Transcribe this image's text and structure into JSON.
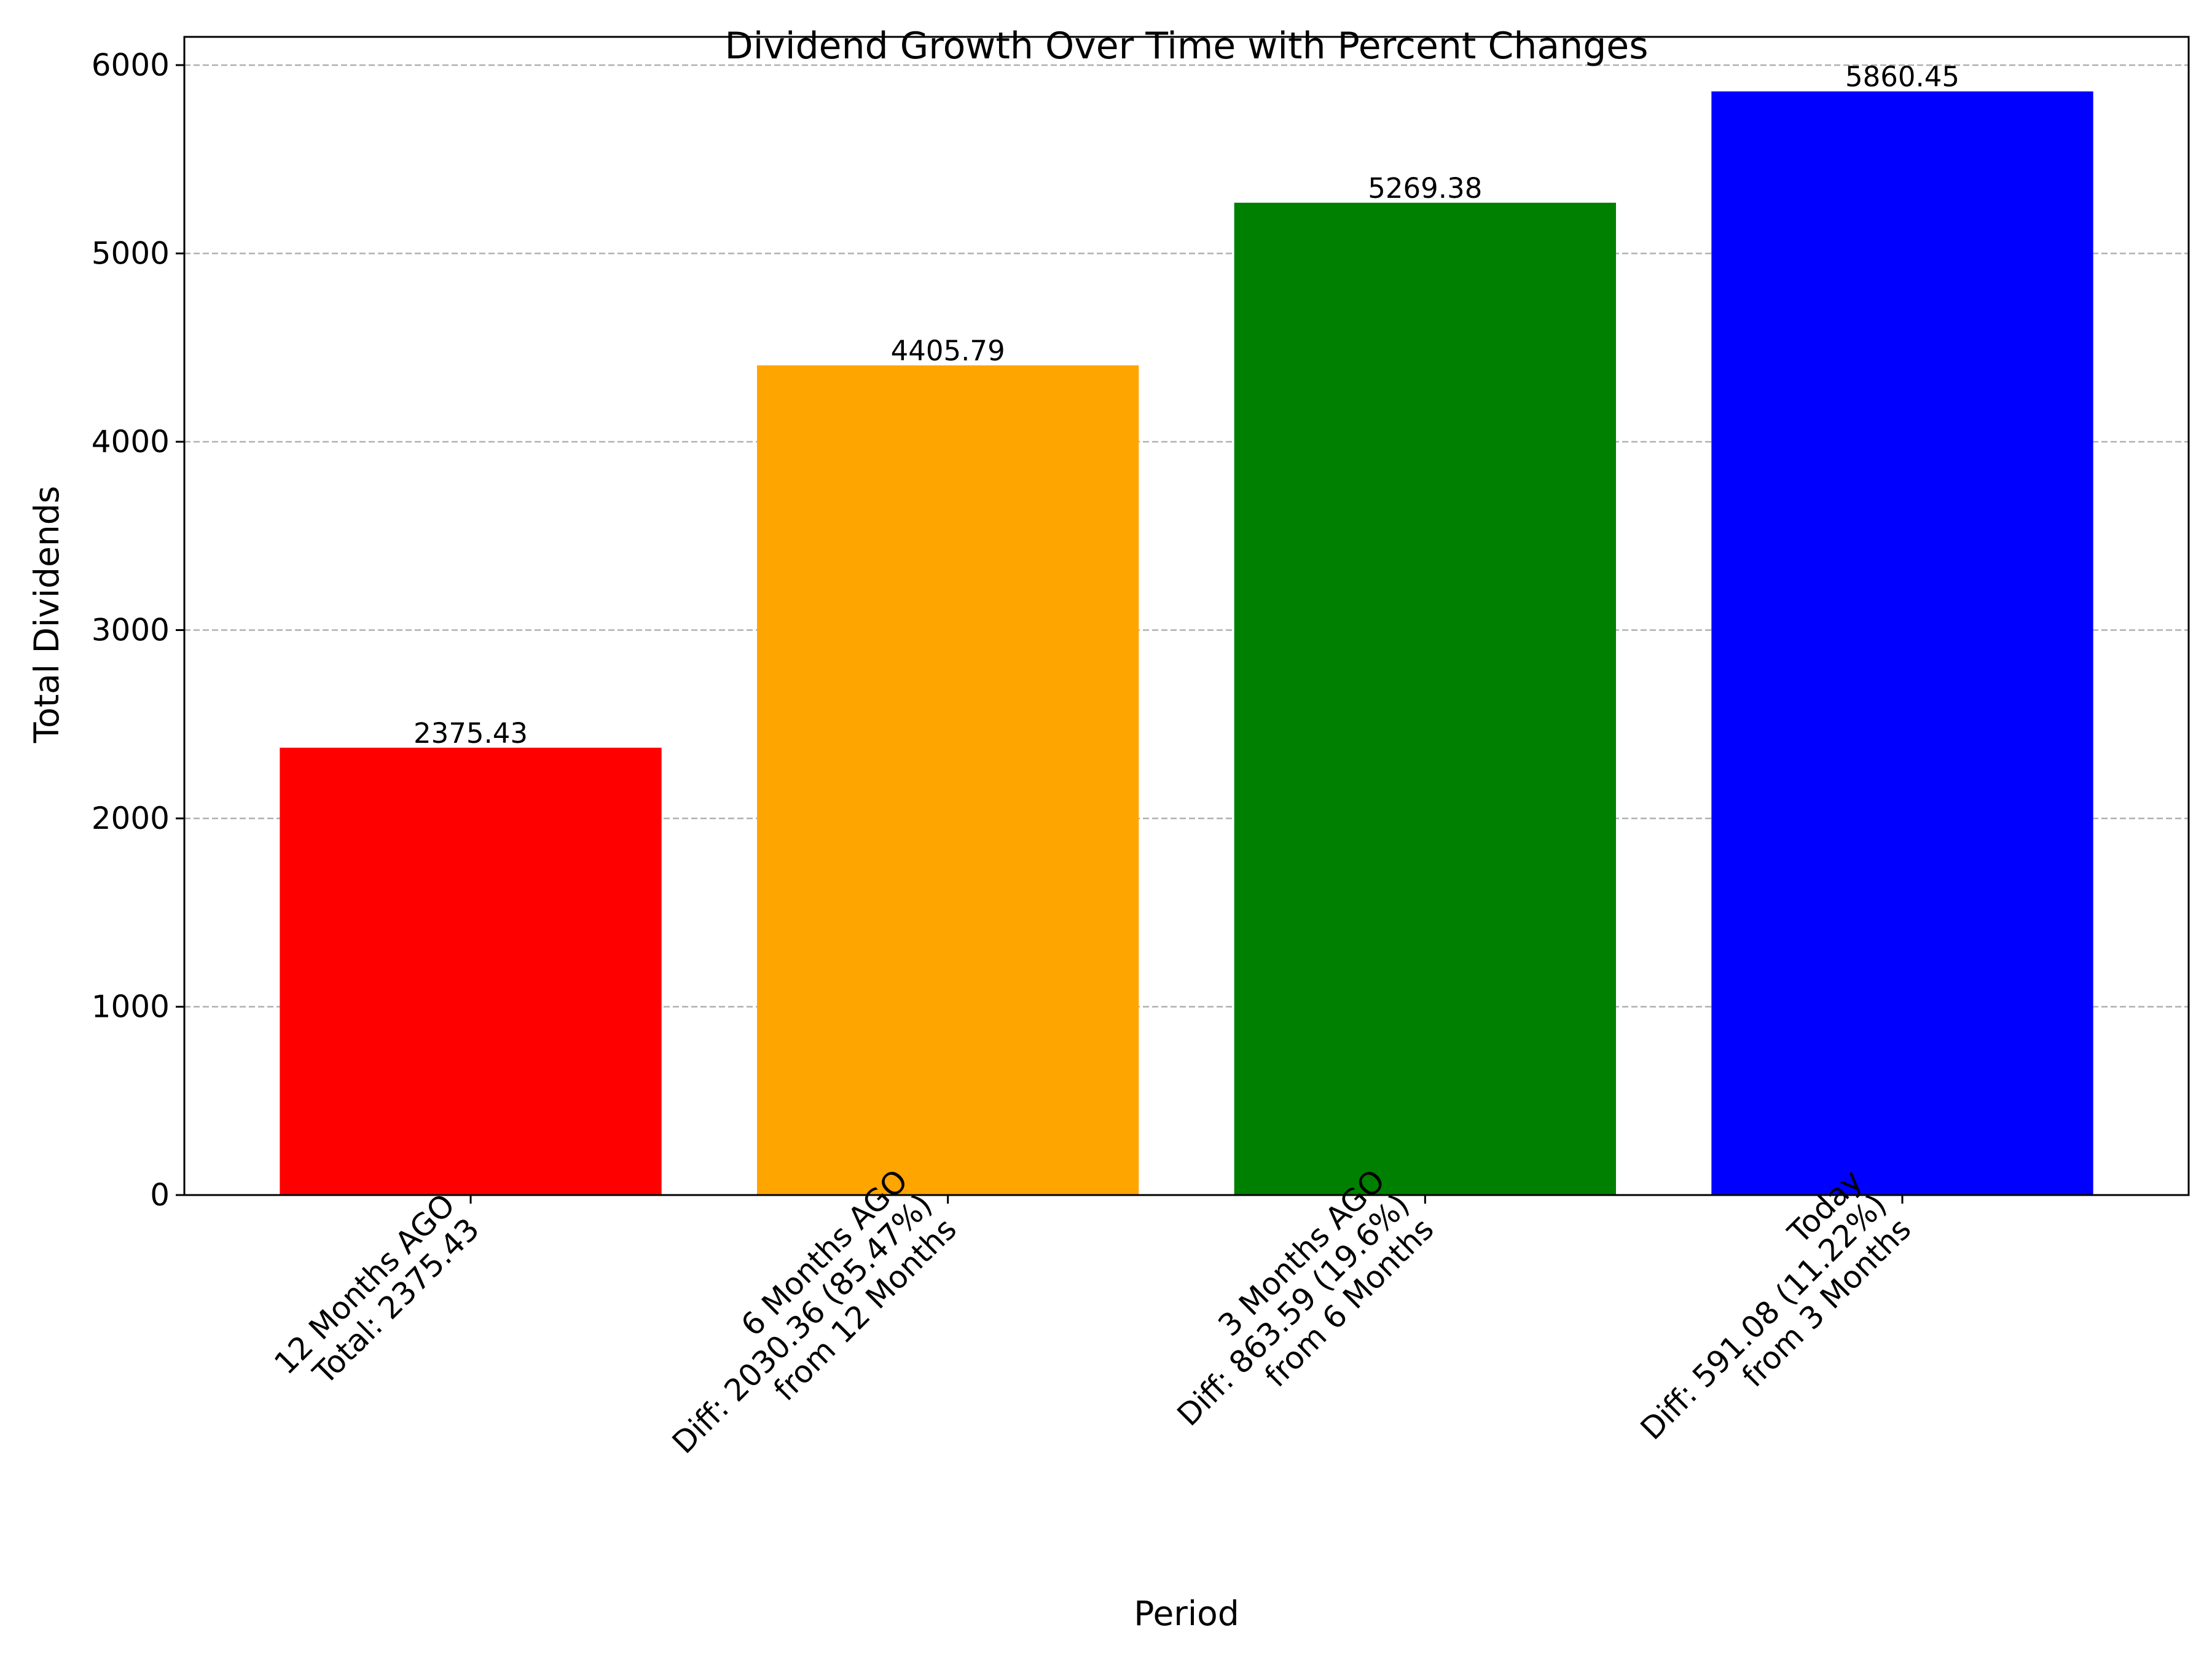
{
  "chart_data": {
    "type": "bar",
    "title": "Dividend Growth Over Time with Percent Changes",
    "xlabel": "Period",
    "ylabel": "Total Dividends",
    "ylim": [
      0,
      6150
    ],
    "yticks": [
      0,
      1000,
      2000,
      3000,
      4000,
      5000,
      6000
    ],
    "grid": "y-dashed",
    "categories": [
      [
        "12 Months AGO",
        "Total: 2375.43"
      ],
      [
        "6 Months AGO",
        "Diff: 2030.36 (85.47%)",
        "from 12 Months"
      ],
      [
        "3 Months AGO",
        "Diff: 863.59 (19.6%)",
        "from 6 Months"
      ],
      [
        "Today",
        "Diff: 591.08 (11.22%)",
        "from 3 Months"
      ]
    ],
    "values": [
      2375.43,
      4405.79,
      5269.38,
      5860.45
    ],
    "data_labels": [
      "2375.43",
      "4405.79",
      "5269.38",
      "5860.45"
    ],
    "colors": [
      "#ff0000",
      "#ffa500",
      "#008000",
      "#0000ff"
    ]
  }
}
